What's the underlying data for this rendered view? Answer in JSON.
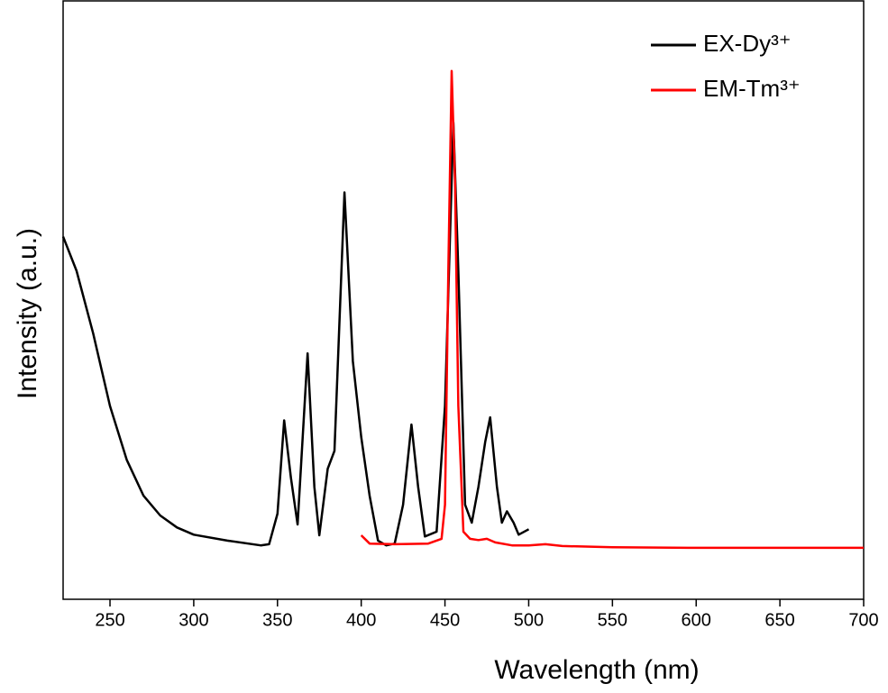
{
  "chart_data": {
    "type": "line",
    "x_label": "Wavelength (nm)",
    "y_label": "Intensity (a.u.)",
    "xlim": [
      222,
      700
    ],
    "ylim": [
      0,
      100
    ],
    "xticks": [
      250,
      300,
      350,
      400,
      450,
      500,
      550,
      600,
      650,
      700
    ],
    "legend": "upper right",
    "series": [
      {
        "name": "EX-Dy³⁺",
        "color": "#000000",
        "x": [
          222,
          230,
          240,
          250,
          260,
          270,
          280,
          290,
          300,
          320,
          340,
          345,
          350,
          354,
          358,
          362,
          368,
          372,
          375,
          380,
          384,
          390,
          395,
          400,
          405,
          410,
          415,
          420,
          425,
          430,
          434,
          438,
          445,
          450,
          455,
          458,
          462,
          466,
          470,
          474,
          477,
          481,
          484,
          487,
          491,
          494,
          500
        ],
        "values": [
          60.6,
          54.9,
          44.4,
          32.3,
          23.3,
          17.3,
          14.0,
          12.0,
          10.8,
          9.8,
          9.0,
          9.2,
          14.3,
          29.9,
          20.3,
          12.5,
          41.1,
          18.8,
          10.7,
          21.8,
          24.8,
          68.0,
          39.8,
          27.1,
          17.3,
          9.8,
          9.0,
          9.3,
          15.8,
          29.2,
          18.8,
          10.5,
          11.3,
          32.3,
          79.7,
          54.9,
          15.8,
          12.8,
          18.8,
          26.3,
          30.4,
          18.8,
          12.8,
          14.7,
          12.8,
          10.8,
          11.7
        ]
      },
      {
        "name": "EM-Tm³⁺",
        "color": "#ff0000",
        "x": [
          400,
          405,
          420,
          440,
          448,
          450,
          452,
          454,
          456,
          458,
          461,
          465,
          470,
          475,
          480,
          490,
          500,
          510,
          520,
          550,
          600,
          650,
          700
        ],
        "values": [
          10.7,
          9.3,
          9.2,
          9.3,
          10.1,
          15.8,
          54.9,
          88.3,
          69.9,
          32.3,
          11.3,
          10.1,
          9.9,
          10.1,
          9.5,
          9.0,
          9.0,
          9.2,
          8.9,
          8.7,
          8.6,
          8.6,
          8.6
        ]
      }
    ]
  }
}
